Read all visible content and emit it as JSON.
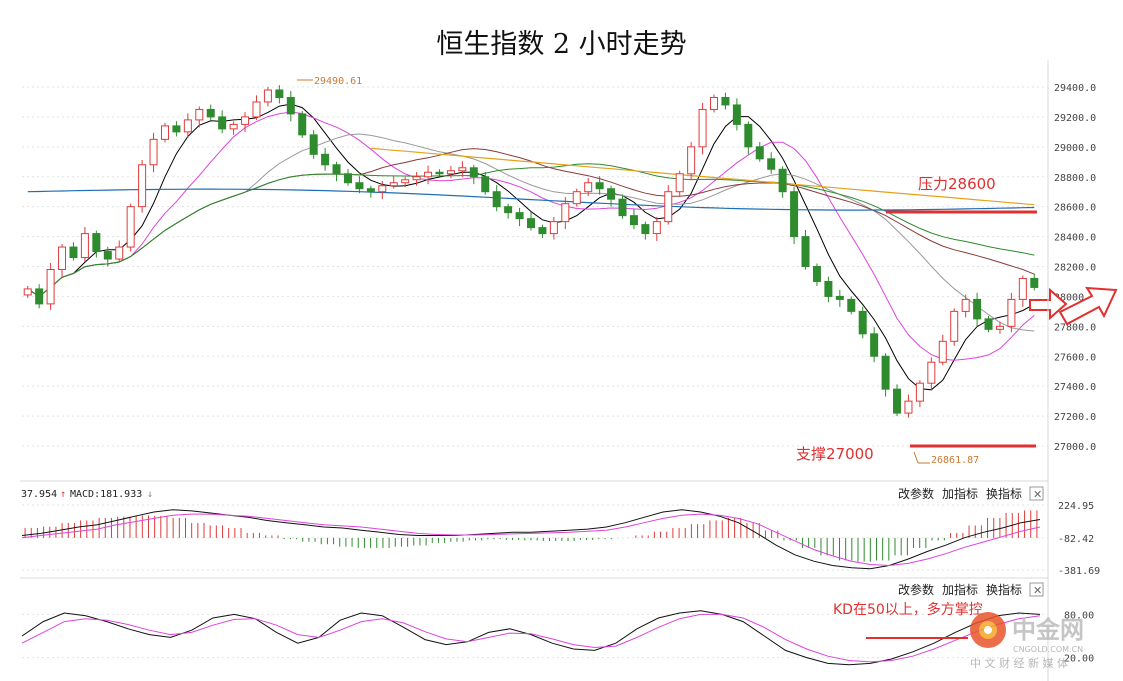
{
  "title": "恒生指数 2 小时走势",
  "colors": {
    "up": "#e03b3b",
    "down": "#2e8b2e",
    "ma5": "#000000",
    "ma10": "#dd44dd",
    "ma20": "#999999",
    "ma30": "#8b3a3a",
    "ma60": "#2e8b2e",
    "ma120": "#1e6fb5",
    "ma250": "#e3a21a",
    "annotation": "#e0302f"
  },
  "toolbar": {
    "modify_params": "改参数",
    "add_indicator": "加指标",
    "switch_indicator": "换指标",
    "close": "✕"
  },
  "macd_header": {
    "left_value": "37.954",
    "label": "MACD:181.933",
    "up_arrow": "↑",
    "down_arrow": "↓"
  },
  "annotations": {
    "resistance": "压力28600",
    "support": "支撑27000",
    "kd_note": "KD在50以上，多方掌控",
    "high_label": "29490.61",
    "low_label": "26861.87"
  },
  "watermark": {
    "brand": "中金网",
    "url": "CNGOLD.COM.CN",
    "slogan": "中 文 财 经 新 媒 体"
  },
  "chart_data": [
    {
      "type": "candlestick",
      "title": "恒生指数 2 小时走势",
      "y_ticks": [
        "29400.0",
        "29200.0",
        "29000.0",
        "28800.0",
        "28600.0",
        "28400.0",
        "28200.0",
        "28000.0",
        "27800.0",
        "27600.0",
        "27400.0",
        "27200.0",
        "27000.0"
      ],
      "ylim": [
        26700,
        29560
      ],
      "high": 29490.61,
      "low": 26861.87,
      "resistance": 28570,
      "support": 27000,
      "close_path": [
        28050,
        27950,
        28180,
        28330,
        28260,
        28420,
        28300,
        28250,
        28330,
        28600,
        28880,
        29050,
        29140,
        29100,
        29180,
        29250,
        29200,
        29120,
        29150,
        29200,
        29300,
        29380,
        29330,
        29220,
        29080,
        28950,
        28880,
        28820,
        28760,
        28720,
        28700,
        28740,
        28760,
        28780,
        28800,
        28830,
        28820,
        28840,
        28860,
        28800,
        28700,
        28600,
        28560,
        28520,
        28460,
        28420,
        28500,
        28620,
        28700,
        28760,
        28720,
        28650,
        28540,
        28480,
        28420,
        28500,
        28700,
        28820,
        29000,
        29250,
        29330,
        29280,
        29150,
        29000,
        28920,
        28850,
        28700,
        28400,
        28200,
        28100,
        28000,
        27980,
        27900,
        27750,
        27600,
        27380,
        27220,
        27300,
        27420,
        27560,
        27700,
        27900,
        27980,
        27850,
        27780,
        27800,
        27980,
        28120,
        28060
      ]
    },
    {
      "type": "macd",
      "y_ticks": [
        "224.95",
        "-82.42",
        "-381.69"
      ],
      "ylim": [
        -381.69,
        224.95
      ],
      "dif_path": [
        -60,
        -40,
        -10,
        20,
        40,
        80,
        120,
        160,
        180,
        170,
        150,
        130,
        110,
        80,
        60,
        40,
        20,
        10,
        -10,
        -30,
        -50,
        -60,
        -60,
        -60,
        -50,
        -40,
        -30,
        -30,
        -20,
        -10,
        0,
        20,
        60,
        110,
        160,
        180,
        160,
        120,
        60,
        -40,
        -150,
        -240,
        -300,
        -340,
        -360,
        -370,
        -340,
        -280,
        -210,
        -150,
        -80,
        -30,
        10,
        60,
        90
      ],
      "dea_path": [
        -80,
        -60,
        -40,
        -20,
        0,
        40,
        70,
        100,
        130,
        140,
        140,
        130,
        120,
        100,
        80,
        60,
        40,
        30,
        20,
        0,
        -20,
        -40,
        -50,
        -55,
        -55,
        -50,
        -45,
        -40,
        -35,
        -30,
        -20,
        -10,
        20,
        60,
        100,
        130,
        140,
        130,
        100,
        50,
        -30,
        -110,
        -190,
        -250,
        -300,
        -330,
        -340,
        -320,
        -280,
        -230,
        -170,
        -120,
        -70,
        -20,
        20
      ],
      "hist_path": [
        40,
        45,
        60,
        70,
        80,
        85,
        90,
        88,
        80,
        60,
        50,
        40,
        20,
        10,
        -5,
        -15,
        -25,
        -35,
        -40,
        -40,
        -35,
        -30,
        -20,
        -15,
        -10,
        -5,
        -8,
        -10,
        -12,
        -12,
        -8,
        -5,
        0,
        10,
        25,
        40,
        55,
        70,
        80,
        60,
        30,
        -10,
        -40,
        -70,
        -90,
        -95,
        -90,
        -70,
        -40,
        -10,
        20,
        50,
        80,
        100,
        110
      ]
    },
    {
      "type": "line",
      "name": "KD",
      "y_ticks": [
        "80.00",
        "20.00"
      ],
      "ylim": [
        0,
        100
      ],
      "k_path": [
        50,
        70,
        82,
        78,
        70,
        60,
        52,
        48,
        58,
        75,
        80,
        74,
        55,
        40,
        48,
        72,
        82,
        78,
        62,
        45,
        38,
        42,
        55,
        60,
        52,
        40,
        32,
        30,
        40,
        60,
        75,
        82,
        85,
        80,
        70,
        50,
        30,
        20,
        12,
        10,
        12,
        18,
        28,
        40,
        55,
        68,
        78,
        82,
        80
      ],
      "d_path": [
        40,
        55,
        70,
        74,
        72,
        66,
        58,
        52,
        55,
        65,
        73,
        74,
        65,
        52,
        48,
        58,
        70,
        74,
        68,
        56,
        46,
        42,
        48,
        54,
        53,
        46,
        38,
        34,
        36,
        48,
        62,
        74,
        80,
        80,
        75,
        62,
        45,
        32,
        22,
        16,
        14,
        16,
        22,
        32,
        44,
        56,
        66,
        74,
        78
      ]
    }
  ]
}
